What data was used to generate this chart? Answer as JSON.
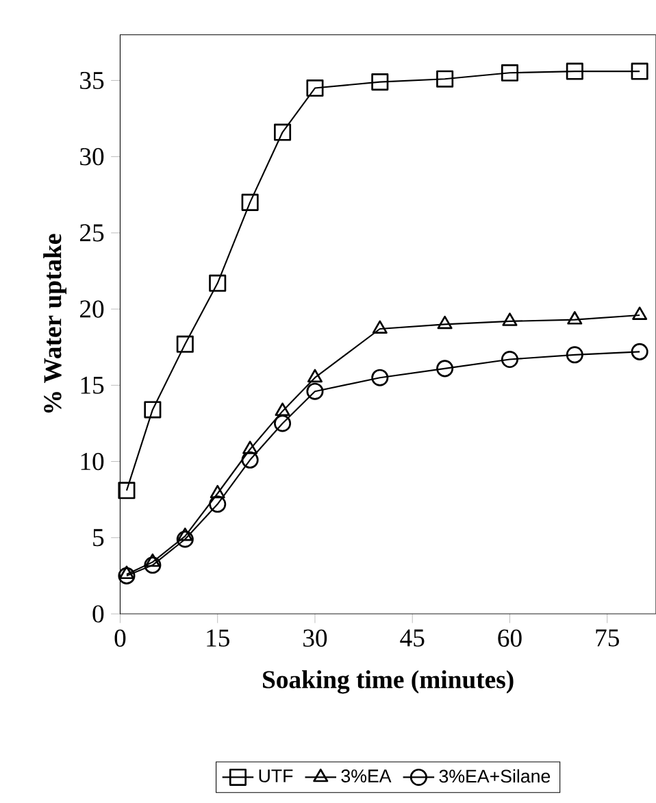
{
  "chart_data": {
    "type": "line",
    "xlabel": "Soaking time (minutes)",
    "ylabel": "% Water uptake",
    "x": [
      1,
      5,
      10,
      15,
      20,
      25,
      30,
      40,
      50,
      60,
      70,
      80
    ],
    "series": [
      {
        "name": "UTF",
        "color": "#000000",
        "marker": "square",
        "values": [
          8.1,
          13.4,
          17.7,
          21.7,
          27.0,
          31.6,
          34.5,
          34.9,
          35.1,
          35.5,
          35.6,
          35.6
        ]
      },
      {
        "name": "3%EA",
        "color": "#000000",
        "marker": "triangle",
        "values": [
          2.6,
          3.4,
          5.1,
          7.9,
          10.8,
          13.3,
          15.5,
          18.7,
          19.0,
          19.2,
          19.3,
          19.6
        ]
      },
      {
        "name": "3%EA+Silane",
        "color": "#000000",
        "marker": "circle",
        "values": [
          2.5,
          3.2,
          4.9,
          7.2,
          10.1,
          12.5,
          14.6,
          15.5,
          16.1,
          16.7,
          17.0,
          17.2
        ]
      }
    ],
    "xlim": [
      0,
      82.5
    ],
    "ylim": [
      0,
      38
    ],
    "xticks": [
      0,
      15,
      30,
      45,
      60,
      75
    ],
    "yticks": [
      0,
      5,
      10,
      15,
      20,
      25,
      30,
      35
    ],
    "legend": "bottom",
    "grid": false,
    "line_style": "solid"
  }
}
